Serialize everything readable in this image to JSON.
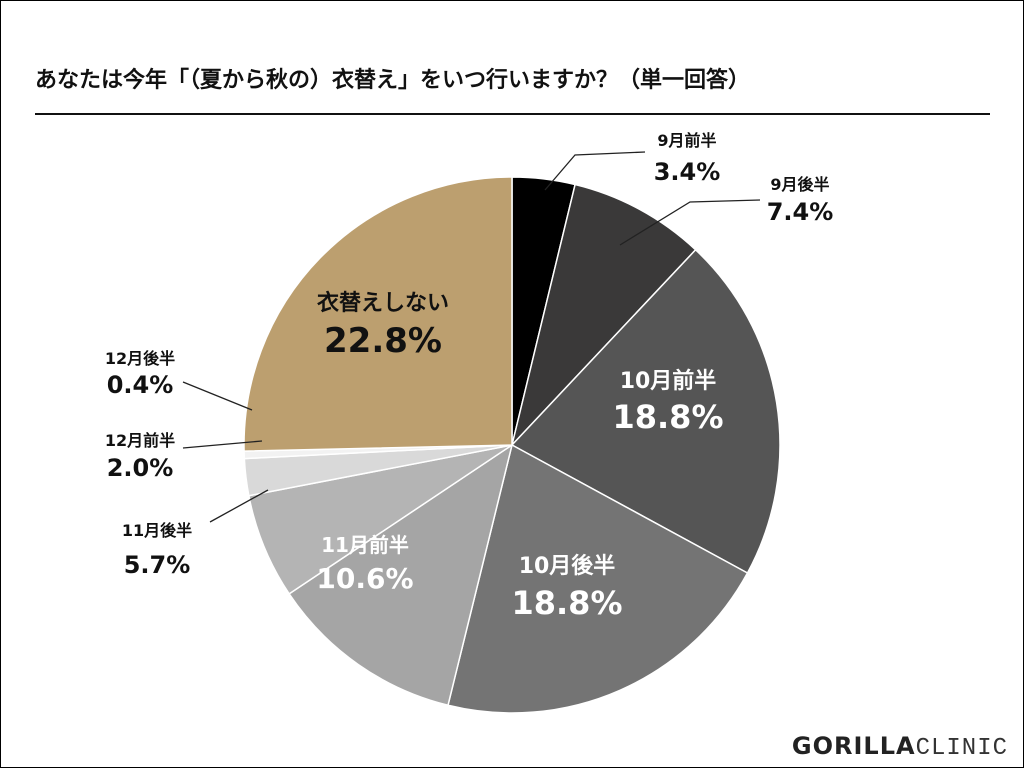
{
  "chart_data": {
    "type": "pie",
    "title": "あなたは今年「（夏から秋の）衣替え」をいつ行いますか？（単一回答）",
    "start": "top-clockwise",
    "slices": [
      {
        "label": "9月前半",
        "value": 3.4,
        "text": "3.4%",
        "color": "#000000"
      },
      {
        "label": "9月後半",
        "value": 7.4,
        "text": "7.4%",
        "color": "#3a3939"
      },
      {
        "label": "10月前半",
        "value": 18.8,
        "text": "18.8%",
        "color": "#555555"
      },
      {
        "label": "10月後半",
        "value": 18.8,
        "text": "18.8%",
        "color": "#747474"
      },
      {
        "label": "11月前半",
        "value": 10.6,
        "text": "10.6%",
        "color": "#a5a5a5"
      },
      {
        "label": "11月後半",
        "value": 5.7,
        "text": "5.7%",
        "color": "#b4b4b4"
      },
      {
        "label": "12月前半",
        "value": 2.0,
        "text": "2.0%",
        "color": "#d9d9d9"
      },
      {
        "label": "12月後半",
        "value": 0.4,
        "text": "0.4%",
        "color": "#f2f2f2"
      },
      {
        "label": "衣替えしない",
        "value": 22.8,
        "text": "22.8%",
        "color": "#bc9f6f"
      }
    ]
  },
  "logo": {
    "bold": "GORILLA",
    "light": "CLINIC"
  }
}
